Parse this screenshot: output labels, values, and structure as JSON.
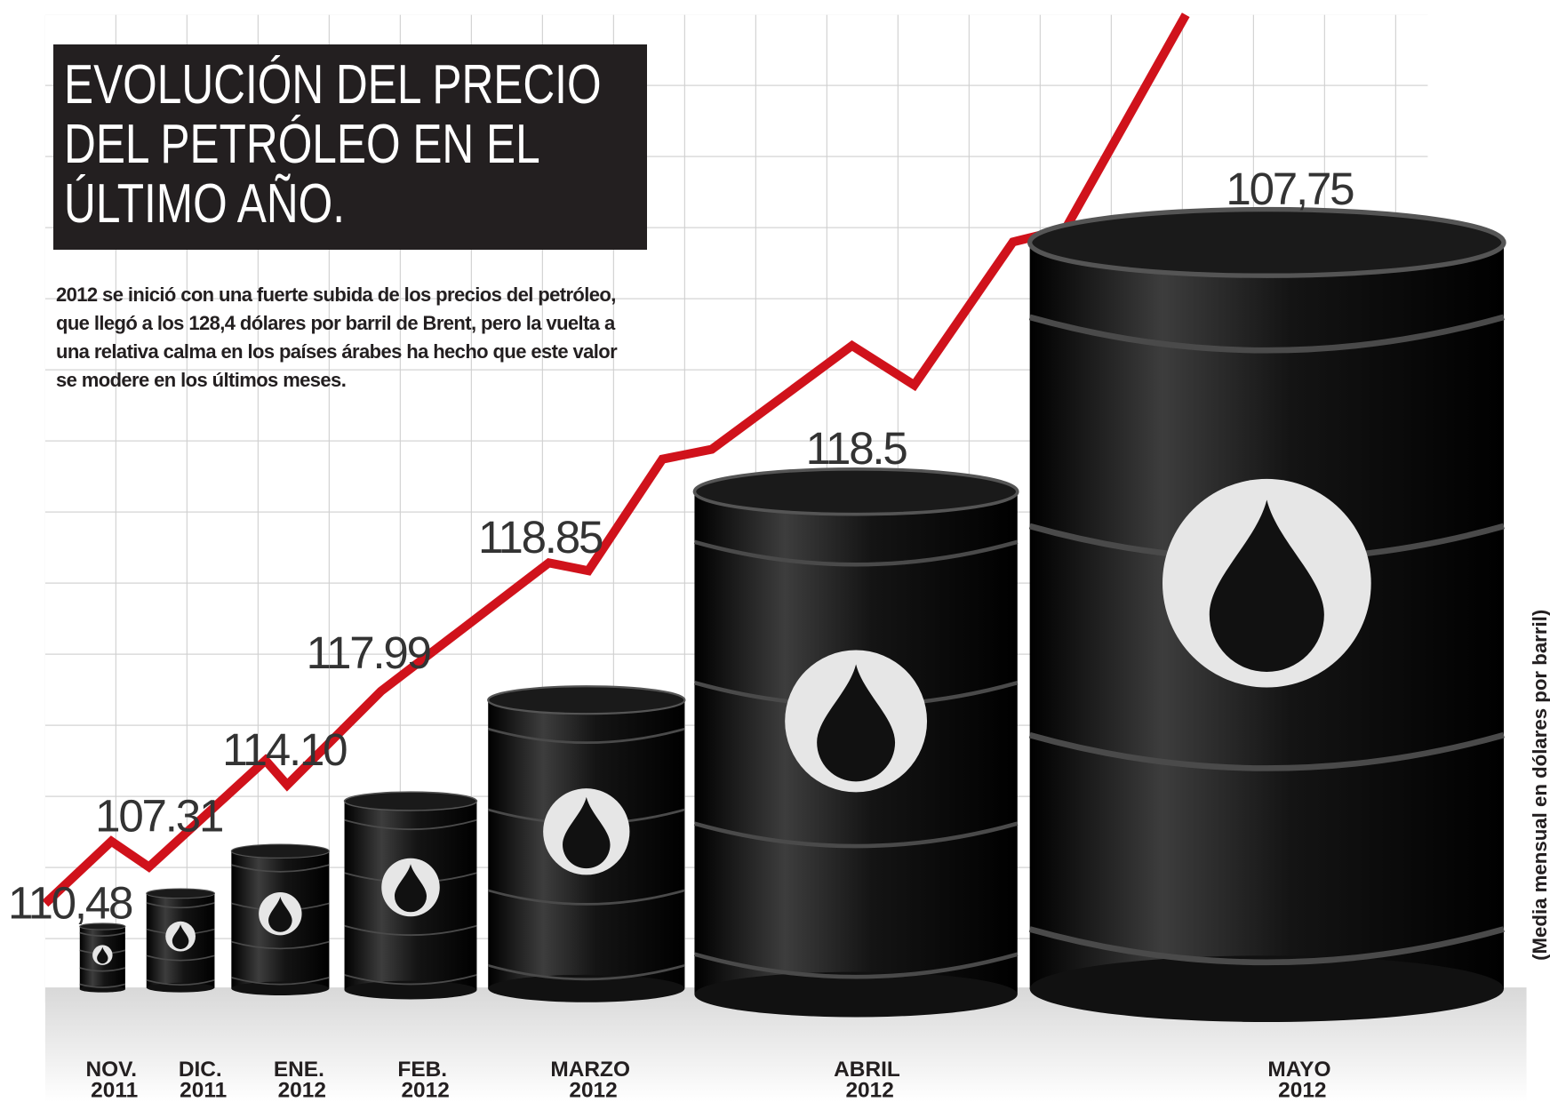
{
  "chart_data": {
    "type": "barrel",
    "title": "EVOLUCIÓN DEL PRECIO DEL PETRÓLEO EN EL ÚLTIMO AÑO.",
    "subtitle": "2012 se inició con una fuerte subida de los precios del petróleo, que llegó a los 128,4 dólares por barril de Brent, pero la vuelta a una relativa calma en los países árabes ha hecho que este valor se modere en los últimos meses.",
    "y_axis_label": "(Media mensual en dólares por barril)",
    "categories": [
      "NOV. 2011",
      "DIC. 2011",
      "ENE. 2012",
      "FEB. 2012",
      "MARZO 2012",
      "ABRIL 2012",
      "MAYO 2012"
    ],
    "values": [
      110.48,
      107.31,
      114.1,
      117.99,
      118.85,
      118.5,
      107.75
    ],
    "value_labels": [
      "110,48",
      "107.31",
      "114.10",
      "117.99",
      "118.85",
      "118.5",
      "107,75"
    ],
    "color": "#111111"
  }
}
